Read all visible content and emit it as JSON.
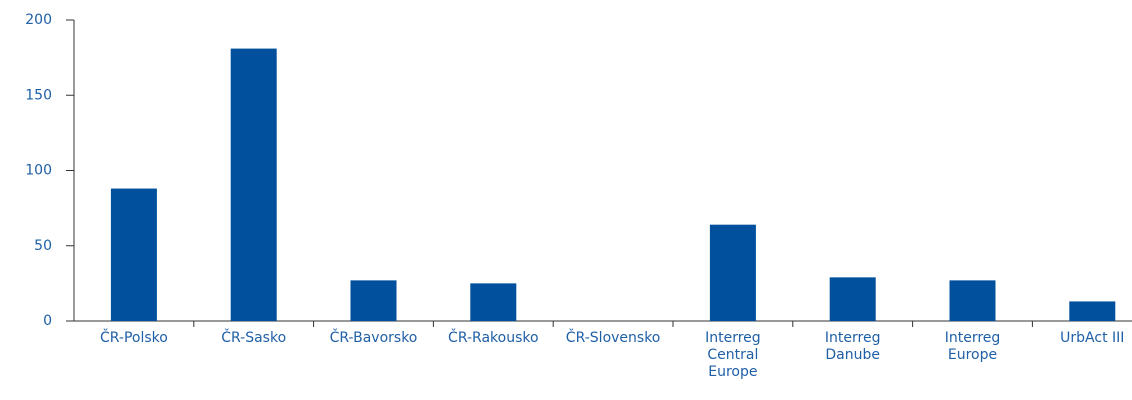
{
  "chart_data": {
    "type": "bar",
    "categories": [
      "ČR-Polsko",
      "ČR-Sasko",
      "ČR-Bavorsko",
      "ČR-Rakousko",
      "ČR-Slovensko",
      "Interreg Central Europe",
      "Interreg Danube",
      "Interreg Europe",
      "UrbAct III"
    ],
    "values": [
      88,
      181,
      27,
      25,
      0,
      64,
      29,
      27,
      13
    ],
    "color": "#00509d",
    "ylim": [
      0,
      200
    ],
    "yticks": [
      0,
      50,
      100,
      150,
      200
    ],
    "grid": false
  }
}
